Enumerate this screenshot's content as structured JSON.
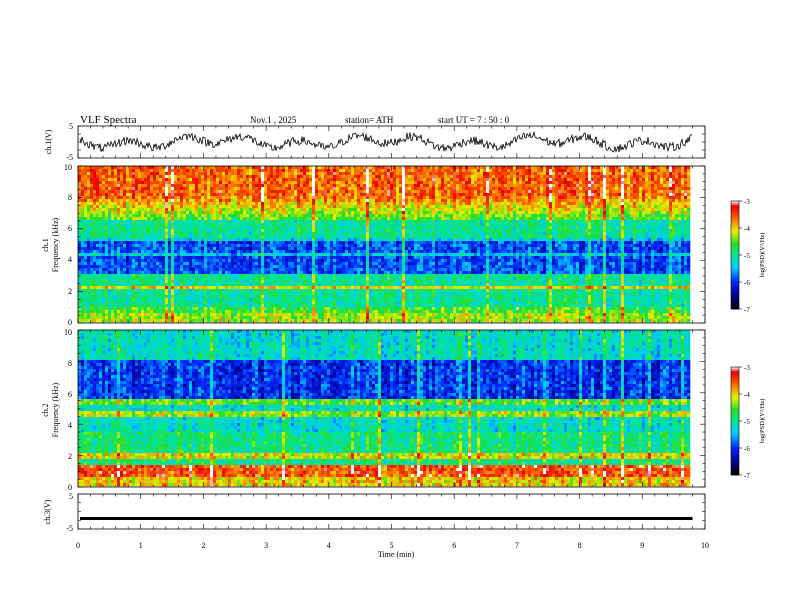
{
  "header": {
    "title": "VLF  Spectra",
    "date": "Nov.1  , 2025",
    "station": "station= ATH",
    "start": "start  UT  =    7  : 50 : 0"
  },
  "chart_data": [
    {
      "type": "line",
      "panel": "ch1-waveform",
      "ylabel": "ch.1(V)",
      "ylim": [
        -5,
        5
      ],
      "yticks": [
        "5",
        "-5"
      ],
      "xlim": [
        0,
        10
      ],
      "approx_amplitude_v": 3
    },
    {
      "type": "heatmap",
      "panel": "ch1-spectrogram",
      "ylabel_line1": "ch.1",
      "ylabel_line2": "Frequency  (kHz)",
      "ylim": [
        0,
        10
      ],
      "yticks": [
        "0",
        "2",
        "4",
        "6",
        "8",
        "10"
      ],
      "xlim": [
        0,
        10
      ],
      "data_end_min": 9.8,
      "colorbar": {
        "label": "log(PSD)(V²/Hz)",
        "range": [
          -7,
          -3
        ],
        "ticks": [
          "-3",
          "-4",
          "-5",
          "-6",
          "-7"
        ]
      }
    },
    {
      "type": "heatmap",
      "panel": "ch2-spectrogram",
      "ylabel_line1": "ch.2",
      "ylabel_line2": "Frequency  (kHz)",
      "ylim": [
        0,
        10
      ],
      "yticks": [
        "0",
        "2",
        "4",
        "6",
        "8",
        "10"
      ],
      "xlim": [
        0,
        10
      ],
      "data_end_min": 9.8,
      "colorbar": {
        "label": "log(PSD)(V²/Hz)",
        "range": [
          -7,
          -3
        ],
        "ticks": [
          "-3",
          "-4",
          "-5",
          "-6",
          "-7"
        ]
      }
    },
    {
      "type": "line",
      "panel": "ch3-waveform",
      "ylabel": "ch.3(V)",
      "ylim": [
        -5,
        5
      ],
      "yticks": [
        "5",
        "-5"
      ],
      "xlim": [
        0,
        10
      ],
      "level_v": -2,
      "xlabel": "Time  (min)",
      "xticks": [
        "0",
        "1",
        "2",
        "3",
        "4",
        "5",
        "6",
        "7",
        "8",
        "9",
        "10"
      ]
    }
  ]
}
